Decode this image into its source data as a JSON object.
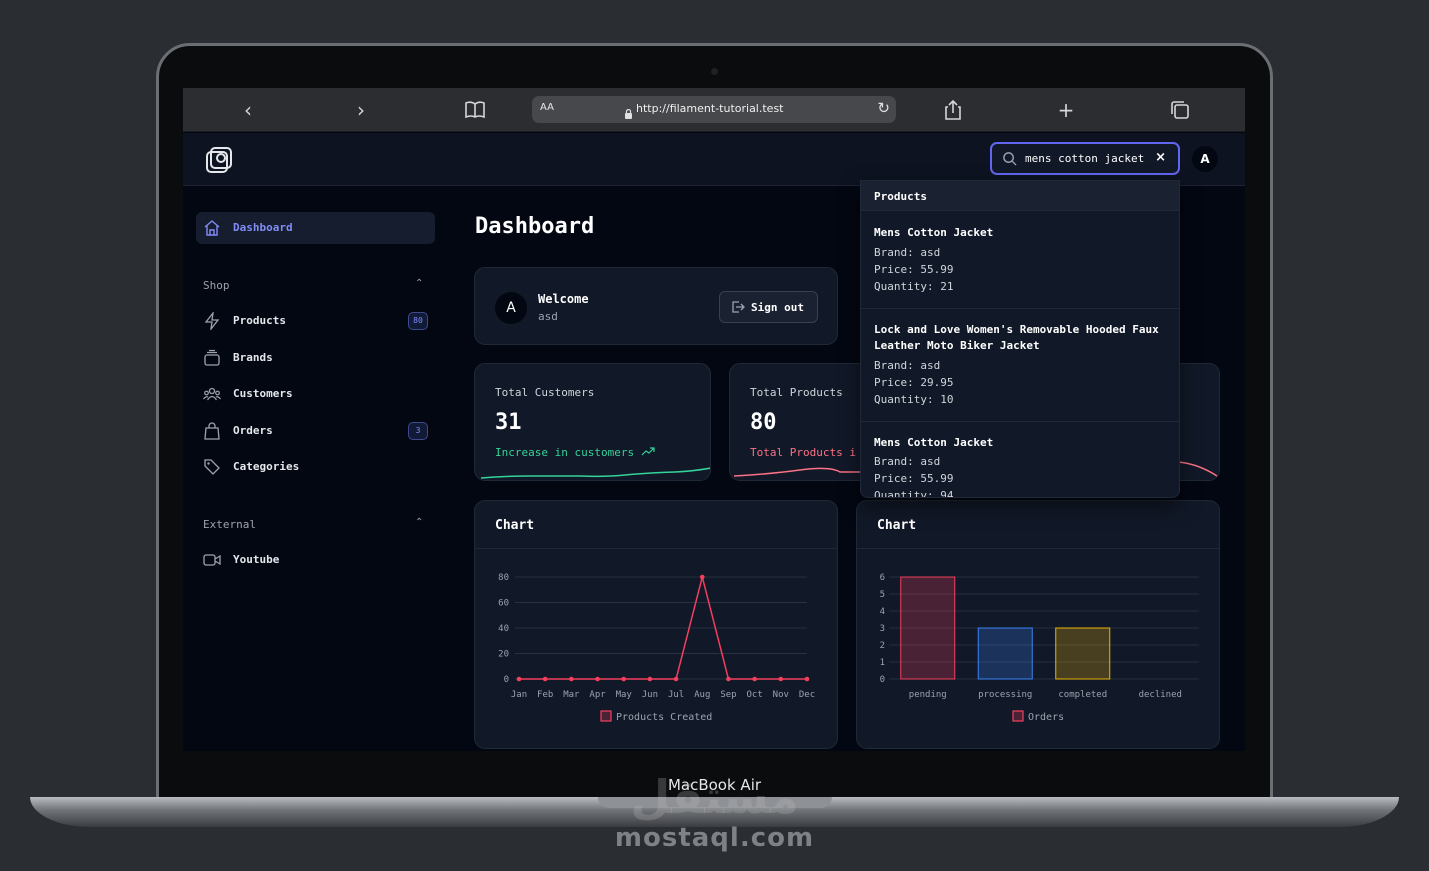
{
  "device": {
    "brand": "MacBook Air"
  },
  "watermark": {
    "arabic": "مستقل",
    "latin": "mostaql.com"
  },
  "browser": {
    "reader_label": "AA",
    "url": "http://filament-tutorial.test"
  },
  "topbar": {
    "search_value": "mens cotton jacket",
    "avatar_initial": "A"
  },
  "sidebar": {
    "dashboard": "Dashboard",
    "groups": [
      {
        "label": "Shop",
        "items": [
          {
            "label": "Products",
            "badge": "80"
          },
          {
            "label": "Brands"
          },
          {
            "label": "Customers"
          },
          {
            "label": "Orders",
            "badge": "3"
          },
          {
            "label": "Categories"
          }
        ]
      },
      {
        "label": "External",
        "items": [
          {
            "label": "Youtube"
          }
        ]
      }
    ]
  },
  "main": {
    "title": "Dashboard",
    "welcome": {
      "avatar_initial": "A",
      "heading": "Welcome",
      "name": "asd",
      "signout": "Sign out"
    },
    "stats": [
      {
        "label": "Total Customers",
        "value": "31",
        "description": "Increase in customers",
        "color": "#34d399"
      },
      {
        "label": "Total Products",
        "value": "80",
        "description": "Total Products i",
        "color": "#fb7185"
      }
    ]
  },
  "dropdown": {
    "heading": "Products",
    "items": [
      {
        "title": "Mens Cotton Jacket",
        "brand": "Brand: asd",
        "price": "Price: 55.99",
        "quantity": "Quantity: 21"
      },
      {
        "title": "Lock and Love Women's Removable Hooded Faux Leather Moto Biker Jacket",
        "brand": "Brand: asd",
        "price": "Price: 29.95",
        "quantity": "Quantity: 10"
      },
      {
        "title": "Mens Cotton Jacket",
        "brand": "Brand: asd",
        "price": "Price: 55.99",
        "quantity": "Quantity: 94"
      }
    ]
  },
  "chart_data": [
    {
      "type": "line",
      "title": "Chart",
      "categories": [
        "Jan",
        "Feb",
        "Mar",
        "Apr",
        "May",
        "Jun",
        "Jul",
        "Aug",
        "Sep",
        "Oct",
        "Nov",
        "Dec"
      ],
      "series": [
        {
          "name": "Products Created",
          "values": [
            0,
            0,
            0,
            0,
            0,
            0,
            0,
            80,
            0,
            0,
            0,
            0
          ],
          "color": "#f43f5e"
        }
      ],
      "yticks": [
        0,
        20,
        40,
        60,
        80
      ],
      "ylim": [
        0,
        80
      ],
      "grid": true,
      "legend": "bottom"
    },
    {
      "type": "bar",
      "title": "Chart",
      "categories": [
        "pending",
        "processing",
        "completed",
        "declined"
      ],
      "series": [
        {
          "name": "Orders",
          "values": [
            6,
            3,
            3,
            0
          ]
        }
      ],
      "bar_colors": [
        "#f43f5e",
        "#3b82f6",
        "#eab308",
        "#22c55e"
      ],
      "yticks": [
        0,
        1,
        2,
        3,
        4,
        5,
        6
      ],
      "ylim": [
        0,
        6
      ],
      "grid": true,
      "legend": "bottom"
    }
  ]
}
